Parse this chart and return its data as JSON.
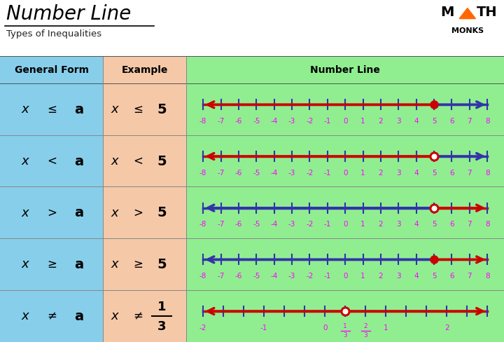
{
  "title": "Number Line",
  "subtitle": "Types of Inequalities",
  "bg_blue": "#87CEEB",
  "bg_orange": "#F5C8A8",
  "bg_green": "#90EE90",
  "col1_header": "General Form",
  "col2_header": "Example",
  "col3_header": "Number Line",
  "rows": [
    {
      "general_x": "x",
      "general_sym": "≤",
      "general_a": "a",
      "example_x": "x",
      "example_sym": "≤",
      "example_num": "5",
      "example_frac": false,
      "type": "leq",
      "value": 5,
      "lc_inequality": "#CC0000",
      "lc_plain": "#3333AA",
      "dot_filled": true,
      "tick_labels": [
        "-8",
        "-7",
        "-6",
        "-5",
        "-4",
        "-3",
        "-2",
        "-1",
        "0",
        "1",
        "2",
        "3",
        "4",
        "5",
        "6",
        "7",
        "8"
      ],
      "tick_values": [
        -8,
        -7,
        -6,
        -5,
        -4,
        -3,
        -2,
        -1,
        0,
        1,
        2,
        3,
        4,
        5,
        6,
        7,
        8
      ],
      "xmin": -8,
      "xmax": 8
    },
    {
      "general_x": "x",
      "general_sym": "<",
      "general_a": "a",
      "example_x": "x",
      "example_sym": "<",
      "example_num": "5",
      "example_frac": false,
      "type": "lt",
      "value": 5,
      "lc_inequality": "#CC0000",
      "lc_plain": "#3333AA",
      "dot_filled": false,
      "tick_labels": [
        "-8",
        "-7",
        "-6",
        "-5",
        "-4",
        "-3",
        "-2",
        "-1",
        "0",
        "1",
        "2",
        "3",
        "4",
        "5",
        "6",
        "7",
        "8"
      ],
      "tick_values": [
        -8,
        -7,
        -6,
        -5,
        -4,
        -3,
        -2,
        -1,
        0,
        1,
        2,
        3,
        4,
        5,
        6,
        7,
        8
      ],
      "xmin": -8,
      "xmax": 8
    },
    {
      "general_x": "x",
      "general_sym": ">",
      "general_a": "a",
      "example_x": "x",
      "example_sym": ">",
      "example_num": "5",
      "example_frac": false,
      "type": "gt",
      "value": 5,
      "lc_inequality": "#CC0000",
      "lc_plain": "#3333AA",
      "dot_filled": false,
      "tick_labels": [
        "-8",
        "-7",
        "-6",
        "-5",
        "-4",
        "-3",
        "-2",
        "-1",
        "0",
        "1",
        "2",
        "3",
        "4",
        "5",
        "6",
        "7",
        "8"
      ],
      "tick_values": [
        -8,
        -7,
        -6,
        -5,
        -4,
        -3,
        -2,
        -1,
        0,
        1,
        2,
        3,
        4,
        5,
        6,
        7,
        8
      ],
      "xmin": -8,
      "xmax": 8
    },
    {
      "general_x": "x",
      "general_sym": "≥",
      "general_a": "a",
      "example_x": "x",
      "example_sym": "≥",
      "example_num": "5",
      "example_frac": false,
      "type": "geq",
      "value": 5,
      "lc_inequality": "#CC0000",
      "lc_plain": "#3333AA",
      "dot_filled": true,
      "tick_labels": [
        "-8",
        "-7",
        "-6",
        "-5",
        "-4",
        "-3",
        "-2",
        "-1",
        "0",
        "1",
        "2",
        "3",
        "4",
        "5",
        "6",
        "7",
        "8"
      ],
      "tick_values": [
        -8,
        -7,
        -6,
        -5,
        -4,
        -3,
        -2,
        -1,
        0,
        1,
        2,
        3,
        4,
        5,
        6,
        7,
        8
      ],
      "xmin": -8,
      "xmax": 8
    },
    {
      "general_x": "x",
      "general_sym": "≠",
      "general_a": "a",
      "example_x": "x",
      "example_sym": "≠",
      "example_num": "1",
      "example_den": "3",
      "example_frac": true,
      "type": "neq",
      "value": 0.3333,
      "lc_inequality": "#CC0000",
      "lc_plain": "#CC0000",
      "dot_filled": false,
      "tick_labels": [
        "-2",
        "",
        "",
        "-1",
        "",
        "",
        "0",
        "1/3",
        "2/3",
        "1",
        "",
        "",
        "2",
        "",
        ""
      ],
      "tick_values": [
        -2.0,
        -1.6667,
        -1.3333,
        -1.0,
        -0.6667,
        -0.3333,
        0,
        0.3333,
        0.6667,
        1.0,
        1.3333,
        1.6667,
        2.0,
        2.3333,
        2.6667
      ],
      "xmin": -2.0,
      "xmax": 2.6667
    }
  ],
  "label_color": "#FF00FF",
  "tick_color": "#3333AA"
}
